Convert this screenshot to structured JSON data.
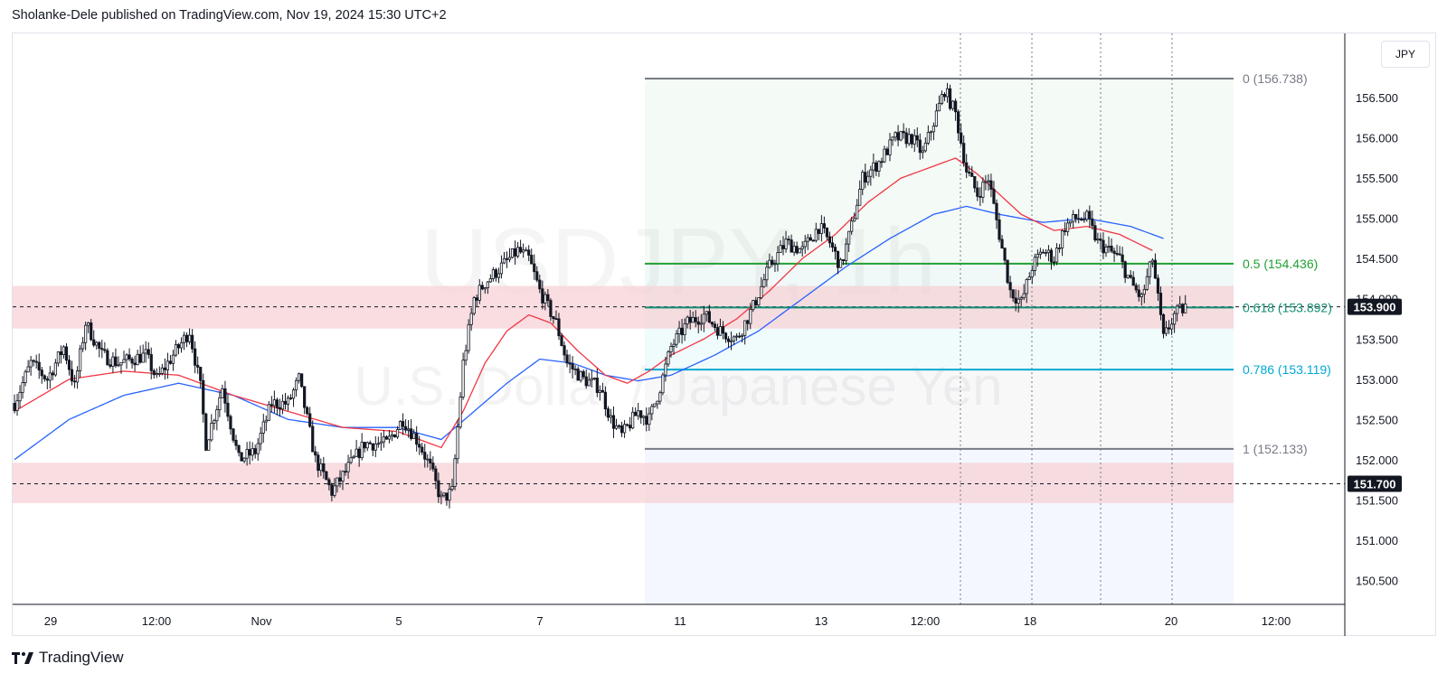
{
  "header": {
    "published_by": "Sholanke-Dele published on TradingView.com, Nov 19, 2024 15:30 UTC+2"
  },
  "footer": {
    "brand": "TradingView",
    "logo_icon": "tradingview-logo-icon"
  },
  "currency_button": "JPY",
  "watermark": {
    "symbol": "USDJPY, 1h",
    "name": "U.S. Dollar / Japanese Yen"
  },
  "colors": {
    "ema_fast": "#f23645",
    "ema_slow": "#2962ff",
    "zone_fill": "#f7d1d5",
    "fib_green": "#22a033",
    "fib_teal": "#108c73",
    "fib_cyan": "#00a9d4",
    "fib_gray": "#787b86",
    "candle": "#131722"
  },
  "chart_data": {
    "type": "candlestick",
    "symbol": "USDJPY",
    "timeframe": "1h",
    "ylim": [
      150.2,
      157.3
    ],
    "y_ticks": [
      "150.500",
      "151.000",
      "151.500",
      "152.000",
      "152.500",
      "153.000",
      "153.500",
      "154.000",
      "154.500",
      "155.000",
      "155.500",
      "156.000",
      "156.500"
    ],
    "x_ticks": [
      "29",
      "12:00",
      "Nov",
      "5",
      "7",
      "11",
      "13",
      "12:00",
      "18",
      "20",
      "12:00"
    ],
    "fib_retracement": [
      {
        "label": "0 (156.738)",
        "level": "0",
        "value": 156.738,
        "color": "#787b86"
      },
      {
        "label": "0.5 (154.436)",
        "level": "0.5",
        "value": 154.436,
        "color": "#22a033"
      },
      {
        "label": "0.618 (153.892)",
        "level": "0.618",
        "value": 153.892,
        "color": "#108c73"
      },
      {
        "label": "0.786 (153.119)",
        "level": "0.786",
        "value": 153.119,
        "color": "#00a9d4"
      },
      {
        "label": "1 (152.133)",
        "level": "1",
        "value": 152.133,
        "color": "#787b86"
      }
    ],
    "zones": [
      {
        "from": 153.63,
        "to": 154.16,
        "marker": "153.900",
        "marker_value": 153.9
      },
      {
        "from": 151.46,
        "to": 151.96,
        "marker": "151.700",
        "marker_value": 151.7
      }
    ],
    "price_labels": [
      {
        "text": "153.900",
        "value": 153.9
      },
      {
        "text": "151.700",
        "value": 151.7
      }
    ],
    "vertical_markers": [
      "Nov 14",
      "Nov 18",
      "Nov 19",
      "Nov 20"
    ],
    "price_path": [
      {
        "t": 0,
        "p": 152.7
      },
      {
        "t": 3,
        "p": 153.2
      },
      {
        "t": 6,
        "p": 153.0
      },
      {
        "t": 9,
        "p": 153.4
      },
      {
        "t": 11,
        "p": 152.9
      },
      {
        "t": 13,
        "p": 153.7
      },
      {
        "t": 16,
        "p": 153.3
      },
      {
        "t": 19,
        "p": 153.2
      },
      {
        "t": 24,
        "p": 153.3
      },
      {
        "t": 26,
        "p": 153.0
      },
      {
        "t": 30,
        "p": 153.4
      },
      {
        "t": 32,
        "p": 153.6
      },
      {
        "t": 34,
        "p": 152.9
      },
      {
        "t": 35,
        "p": 152.2
      },
      {
        "t": 38,
        "p": 152.9
      },
      {
        "t": 41,
        "p": 152.0
      },
      {
        "t": 44,
        "p": 152.1
      },
      {
        "t": 47,
        "p": 152.7
      },
      {
        "t": 50,
        "p": 152.7
      },
      {
        "t": 52,
        "p": 153.0
      },
      {
        "t": 55,
        "p": 152.0
      },
      {
        "t": 58,
        "p": 151.6
      },
      {
        "t": 61,
        "p": 151.9
      },
      {
        "t": 64,
        "p": 152.2
      },
      {
        "t": 68,
        "p": 152.2
      },
      {
        "t": 71,
        "p": 152.5
      },
      {
        "t": 74,
        "p": 152.2
      },
      {
        "t": 76,
        "p": 151.9
      },
      {
        "t": 78,
        "p": 151.5
      },
      {
        "t": 80,
        "p": 151.6
      },
      {
        "t": 82,
        "p": 153.2
      },
      {
        "t": 84,
        "p": 154.0
      },
      {
        "t": 86,
        "p": 154.2
      },
      {
        "t": 89,
        "p": 154.4
      },
      {
        "t": 92,
        "p": 154.6
      },
      {
        "t": 94,
        "p": 154.5
      },
      {
        "t": 96,
        "p": 154.1
      },
      {
        "t": 99,
        "p": 153.7
      },
      {
        "t": 101,
        "p": 153.2
      },
      {
        "t": 104,
        "p": 153.0
      },
      {
        "t": 107,
        "p": 152.9
      },
      {
        "t": 109,
        "p": 152.5
      },
      {
        "t": 111,
        "p": 152.3
      },
      {
        "t": 114,
        "p": 152.6
      },
      {
        "t": 116,
        "p": 152.5
      },
      {
        "t": 118,
        "p": 152.9
      },
      {
        "t": 120,
        "p": 153.4
      },
      {
        "t": 123,
        "p": 153.7
      },
      {
        "t": 126,
        "p": 153.8
      },
      {
        "t": 129,
        "p": 153.6
      },
      {
        "t": 132,
        "p": 153.5
      },
      {
        "t": 135,
        "p": 153.9
      },
      {
        "t": 138,
        "p": 154.4
      },
      {
        "t": 141,
        "p": 154.7
      },
      {
        "t": 144,
        "p": 154.6
      },
      {
        "t": 147,
        "p": 154.9
      },
      {
        "t": 149,
        "p": 154.7
      },
      {
        "t": 151,
        "p": 154.4
      },
      {
        "t": 153,
        "p": 154.9
      },
      {
        "t": 155,
        "p": 155.5
      },
      {
        "t": 158,
        "p": 155.7
      },
      {
        "t": 161,
        "p": 156.0
      },
      {
        "t": 164,
        "p": 156.0
      },
      {
        "t": 166,
        "p": 155.8
      },
      {
        "t": 168,
        "p": 156.2
      },
      {
        "t": 170,
        "p": 156.6
      },
      {
        "t": 172,
        "p": 156.3
      },
      {
        "t": 174,
        "p": 155.6
      },
      {
        "t": 176,
        "p": 155.3
      },
      {
        "t": 178,
        "p": 155.5
      },
      {
        "t": 180,
        "p": 154.8
      },
      {
        "t": 182,
        "p": 154.1
      },
      {
        "t": 184,
        "p": 153.95
      },
      {
        "t": 186,
        "p": 154.4
      },
      {
        "t": 188,
        "p": 154.6
      },
      {
        "t": 190,
        "p": 154.5
      },
      {
        "t": 192,
        "p": 154.9
      },
      {
        "t": 194,
        "p": 155.0
      },
      {
        "t": 196,
        "p": 155.0
      },
      {
        "t": 198,
        "p": 154.7
      },
      {
        "t": 200,
        "p": 154.6
      },
      {
        "t": 202,
        "p": 154.5
      },
      {
        "t": 204,
        "p": 154.2
      },
      {
        "t": 206,
        "p": 154.0
      },
      {
        "t": 208,
        "p": 154.5
      },
      {
        "t": 209,
        "p": 154.0
      },
      {
        "t": 210,
        "p": 153.5
      },
      {
        "t": 212,
        "p": 153.8
      },
      {
        "t": 214,
        "p": 153.9
      }
    ],
    "ema_fast": [
      {
        "t": 0,
        "p": 152.6
      },
      {
        "t": 10,
        "p": 153.0
      },
      {
        "t": 20,
        "p": 153.1
      },
      {
        "t": 30,
        "p": 153.05
      },
      {
        "t": 40,
        "p": 152.8
      },
      {
        "t": 50,
        "p": 152.6
      },
      {
        "t": 60,
        "p": 152.4
      },
      {
        "t": 70,
        "p": 152.35
      },
      {
        "t": 78,
        "p": 152.15
      },
      {
        "t": 82,
        "p": 152.6
      },
      {
        "t": 86,
        "p": 153.2
      },
      {
        "t": 90,
        "p": 153.6
      },
      {
        "t": 94,
        "p": 153.8
      },
      {
        "t": 98,
        "p": 153.7
      },
      {
        "t": 103,
        "p": 153.35
      },
      {
        "t": 108,
        "p": 153.05
      },
      {
        "t": 112,
        "p": 152.95
      },
      {
        "t": 116,
        "p": 153.1
      },
      {
        "t": 120,
        "p": 153.3
      },
      {
        "t": 126,
        "p": 153.5
      },
      {
        "t": 132,
        "p": 153.75
      },
      {
        "t": 138,
        "p": 154.1
      },
      {
        "t": 144,
        "p": 154.5
      },
      {
        "t": 150,
        "p": 154.8
      },
      {
        "t": 156,
        "p": 155.2
      },
      {
        "t": 162,
        "p": 155.5
      },
      {
        "t": 168,
        "p": 155.65
      },
      {
        "t": 172,
        "p": 155.75
      },
      {
        "t": 176,
        "p": 155.55
      },
      {
        "t": 180,
        "p": 155.3
      },
      {
        "t": 184,
        "p": 155.05
      },
      {
        "t": 190,
        "p": 154.85
      },
      {
        "t": 196,
        "p": 154.9
      },
      {
        "t": 202,
        "p": 154.8
      },
      {
        "t": 208,
        "p": 154.6
      }
    ],
    "ema_slow": [
      {
        "t": 0,
        "p": 152.0
      },
      {
        "t": 10,
        "p": 152.5
      },
      {
        "t": 20,
        "p": 152.8
      },
      {
        "t": 30,
        "p": 152.95
      },
      {
        "t": 40,
        "p": 152.8
      },
      {
        "t": 50,
        "p": 152.5
      },
      {
        "t": 60,
        "p": 152.4
      },
      {
        "t": 70,
        "p": 152.4
      },
      {
        "t": 78,
        "p": 152.25
      },
      {
        "t": 84,
        "p": 152.6
      },
      {
        "t": 90,
        "p": 152.95
      },
      {
        "t": 96,
        "p": 153.25
      },
      {
        "t": 102,
        "p": 153.2
      },
      {
        "t": 108,
        "p": 153.05
      },
      {
        "t": 114,
        "p": 152.98
      },
      {
        "t": 120,
        "p": 153.05
      },
      {
        "t": 128,
        "p": 153.3
      },
      {
        "t": 136,
        "p": 153.6
      },
      {
        "t": 144,
        "p": 154.0
      },
      {
        "t": 152,
        "p": 154.4
      },
      {
        "t": 160,
        "p": 154.75
      },
      {
        "t": 168,
        "p": 155.05
      },
      {
        "t": 174,
        "p": 155.15
      },
      {
        "t": 180,
        "p": 155.05
      },
      {
        "t": 188,
        "p": 154.95
      },
      {
        "t": 196,
        "p": 155.0
      },
      {
        "t": 204,
        "p": 154.9
      },
      {
        "t": 210,
        "p": 154.75
      }
    ]
  }
}
